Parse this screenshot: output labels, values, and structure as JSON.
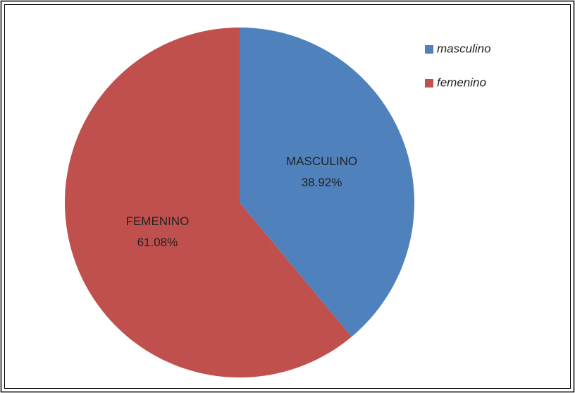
{
  "chart_data": {
    "type": "pie",
    "categories": [
      "masculino",
      "femenino"
    ],
    "values": [
      38.92,
      61.08
    ],
    "value_labels": [
      "38.92%",
      "61.08%"
    ],
    "data_labels": [
      "MASCULINO",
      "FEMENINO"
    ],
    "colors": [
      "#4f81bd",
      "#c0504d"
    ]
  }
}
